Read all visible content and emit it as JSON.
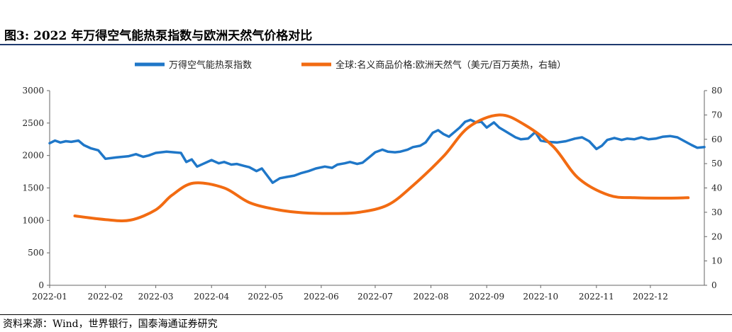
{
  "figure": {
    "title": "图3:  2022 年万得空气能热泵指数与欧洲天然气价格对比",
    "source": "资料来源：Wind，世界银行，国泰海通证券研究"
  },
  "chart_data": {
    "type": "line",
    "title": "",
    "legend_position": "top-center",
    "grid": false,
    "x_ticks": [
      "2022-01",
      "2022-02",
      "2022-03",
      "2022-04",
      "2022-05",
      "2022-06",
      "2022-07",
      "2022-08",
      "2022-09",
      "2022-10",
      "2022-11",
      "2022-12"
    ],
    "left_axis": {
      "ylim": [
        0,
        3000
      ],
      "ticks": [
        "0",
        "500",
        "1000",
        "1500",
        "2000",
        "2500",
        "3000"
      ]
    },
    "right_axis": {
      "ylim": [
        0,
        80
      ],
      "ticks": [
        "0",
        "10",
        "20",
        "30",
        "40",
        "50",
        "60",
        "70",
        "80"
      ]
    },
    "series": [
      {
        "name": "万得空气能热泵指数",
        "axis": "left",
        "color": "#1f77c8",
        "points": [
          [
            "2022-01-01",
            2190
          ],
          [
            "2022-01-04",
            2230
          ],
          [
            "2022-01-07",
            2200
          ],
          [
            "2022-01-10",
            2220
          ],
          [
            "2022-01-13",
            2210
          ],
          [
            "2022-01-17",
            2230
          ],
          [
            "2022-01-20",
            2160
          ],
          [
            "2022-01-24",
            2110
          ],
          [
            "2022-01-28",
            2080
          ],
          [
            "2022-02-01",
            1950
          ],
          [
            "2022-02-07",
            1970
          ],
          [
            "2022-02-14",
            1990
          ],
          [
            "2022-02-18",
            2020
          ],
          [
            "2022-02-22",
            1980
          ],
          [
            "2022-02-25",
            2000
          ],
          [
            "2022-03-01",
            2040
          ],
          [
            "2022-03-07",
            2060
          ],
          [
            "2022-03-11",
            2050
          ],
          [
            "2022-03-15",
            2040
          ],
          [
            "2022-03-18",
            1900
          ],
          [
            "2022-03-21",
            1940
          ],
          [
            "2022-03-24",
            1830
          ],
          [
            "2022-03-28",
            1880
          ],
          [
            "2022-04-01",
            1930
          ],
          [
            "2022-04-05",
            1880
          ],
          [
            "2022-04-08",
            1900
          ],
          [
            "2022-04-12",
            1860
          ],
          [
            "2022-04-15",
            1870
          ],
          [
            "2022-04-19",
            1840
          ],
          [
            "2022-04-22",
            1820
          ],
          [
            "2022-04-26",
            1760
          ],
          [
            "2022-04-29",
            1800
          ],
          [
            "2022-05-05",
            1580
          ],
          [
            "2022-05-09",
            1650
          ],
          [
            "2022-05-13",
            1670
          ],
          [
            "2022-05-17",
            1690
          ],
          [
            "2022-05-21",
            1730
          ],
          [
            "2022-05-25",
            1760
          ],
          [
            "2022-05-29",
            1800
          ],
          [
            "2022-06-03",
            1830
          ],
          [
            "2022-06-07",
            1810
          ],
          [
            "2022-06-10",
            1860
          ],
          [
            "2022-06-14",
            1880
          ],
          [
            "2022-06-17",
            1900
          ],
          [
            "2022-06-21",
            1870
          ],
          [
            "2022-06-24",
            1890
          ],
          [
            "2022-06-28",
            1980
          ],
          [
            "2022-07-01",
            2050
          ],
          [
            "2022-07-05",
            2090
          ],
          [
            "2022-07-08",
            2060
          ],
          [
            "2022-07-12",
            2050
          ],
          [
            "2022-07-15",
            2060
          ],
          [
            "2022-07-19",
            2090
          ],
          [
            "2022-07-22",
            2130
          ],
          [
            "2022-07-26",
            2150
          ],
          [
            "2022-07-29",
            2200
          ],
          [
            "2022-08-02",
            2350
          ],
          [
            "2022-08-05",
            2390
          ],
          [
            "2022-08-08",
            2330
          ],
          [
            "2022-08-11",
            2290
          ],
          [
            "2022-08-14",
            2360
          ],
          [
            "2022-08-17",
            2430
          ],
          [
            "2022-08-20",
            2520
          ],
          [
            "2022-08-23",
            2550
          ],
          [
            "2022-08-26",
            2510
          ],
          [
            "2022-08-29",
            2520
          ],
          [
            "2022-09-01",
            2430
          ],
          [
            "2022-09-05",
            2510
          ],
          [
            "2022-09-08",
            2430
          ],
          [
            "2022-09-11",
            2380
          ],
          [
            "2022-09-14",
            2330
          ],
          [
            "2022-09-17",
            2280
          ],
          [
            "2022-09-20",
            2250
          ],
          [
            "2022-09-24",
            2260
          ],
          [
            "2022-09-28",
            2360
          ],
          [
            "2022-10-01",
            2230
          ],
          [
            "2022-10-05",
            2210
          ],
          [
            "2022-10-10",
            2200
          ],
          [
            "2022-10-15",
            2220
          ],
          [
            "2022-10-20",
            2260
          ],
          [
            "2022-10-24",
            2280
          ],
          [
            "2022-10-28",
            2220
          ],
          [
            "2022-11-01",
            2100
          ],
          [
            "2022-11-04",
            2150
          ],
          [
            "2022-11-07",
            2240
          ],
          [
            "2022-11-11",
            2270
          ],
          [
            "2022-11-15",
            2240
          ],
          [
            "2022-11-18",
            2260
          ],
          [
            "2022-11-22",
            2250
          ],
          [
            "2022-11-26",
            2280
          ],
          [
            "2022-11-30",
            2250
          ],
          [
            "2022-12-04",
            2260
          ],
          [
            "2022-12-08",
            2290
          ],
          [
            "2022-12-12",
            2300
          ],
          [
            "2022-12-16",
            2280
          ],
          [
            "2022-12-20",
            2220
          ],
          [
            "2022-12-24",
            2160
          ],
          [
            "2022-12-27",
            2120
          ],
          [
            "2022-12-31",
            2130
          ]
        ]
      },
      {
        "name": "全球:名义商品价格:欧洲天然气（美元/百万英热，右轴）",
        "axis": "right",
        "color": "#f26b12",
        "points": [
          [
            "2022-01-15",
            28.5
          ],
          [
            "2022-02-01",
            27
          ],
          [
            "2022-02-15",
            26.8
          ],
          [
            "2022-03-01",
            31
          ],
          [
            "2022-03-10",
            37
          ],
          [
            "2022-03-22",
            42
          ],
          [
            "2022-04-08",
            40
          ],
          [
            "2022-04-22",
            34
          ],
          [
            "2022-05-08",
            31
          ],
          [
            "2022-05-22",
            29.8
          ],
          [
            "2022-06-08",
            29.5
          ],
          [
            "2022-06-22",
            30
          ],
          [
            "2022-07-08",
            33
          ],
          [
            "2022-07-22",
            41
          ],
          [
            "2022-08-08",
            53
          ],
          [
            "2022-08-22",
            65
          ],
          [
            "2022-09-08",
            70
          ],
          [
            "2022-09-22",
            66
          ],
          [
            "2022-10-08",
            57
          ],
          [
            "2022-10-22",
            44
          ],
          [
            "2022-11-08",
            37
          ],
          [
            "2022-11-22",
            36
          ],
          [
            "2022-12-08",
            35.8
          ],
          [
            "2022-12-22",
            36
          ]
        ]
      }
    ]
  }
}
